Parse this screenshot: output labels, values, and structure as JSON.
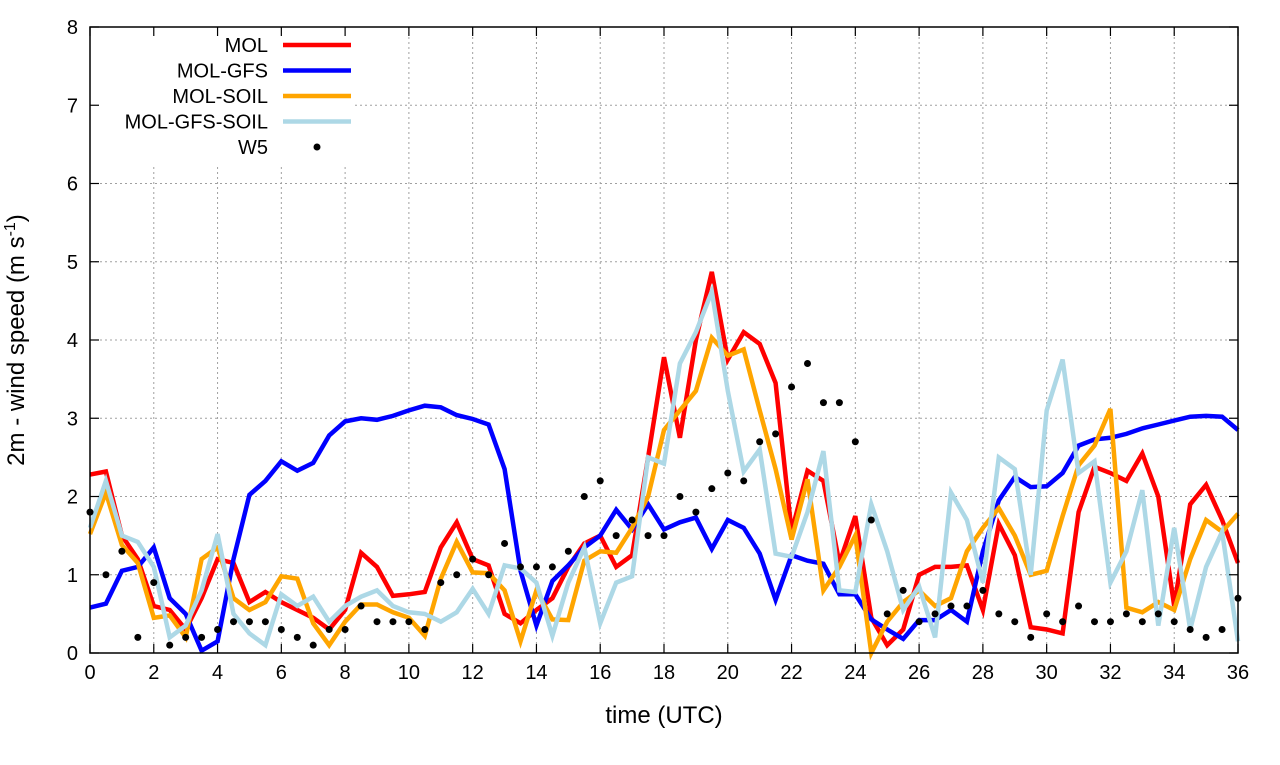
{
  "chart_data": {
    "type": "line",
    "title": "",
    "xlabel": "time (UTC)",
    "ylabel": {
      "main": "2m - wind speed  (m s",
      "sup": "-1",
      "end": ")"
    },
    "xlim": [
      0,
      36
    ],
    "ylim": [
      0,
      8
    ],
    "xticks": [
      0,
      2,
      4,
      6,
      8,
      10,
      12,
      14,
      16,
      18,
      20,
      22,
      24,
      26,
      28,
      30,
      32,
      34,
      36
    ],
    "yticks": [
      0,
      1,
      2,
      3,
      4,
      5,
      6,
      7,
      8
    ],
    "grid": true,
    "legend_position": "top-left",
    "x_step": 0.5,
    "series": [
      {
        "name": "MOL",
        "color": "#ff0000",
        "style": "line",
        "values": [
          2.28,
          2.32,
          1.5,
          1.2,
          0.6,
          0.55,
          0.3,
          0.7,
          1.2,
          1.15,
          0.65,
          0.78,
          0.65,
          0.55,
          0.45,
          0.3,
          0.55,
          1.28,
          1.1,
          0.73,
          0.75,
          0.78,
          1.35,
          1.67,
          1.2,
          1.12,
          0.5,
          0.38,
          0.55,
          0.7,
          1.1,
          1.4,
          1.5,
          1.1,
          1.25,
          2.5,
          3.78,
          2.75,
          4.0,
          4.87,
          3.75,
          4.1,
          3.95,
          3.45,
          1.55,
          2.33,
          2.2,
          1.15,
          1.75,
          0.45,
          0.1,
          0.3,
          1.0,
          1.1,
          1.1,
          1.12,
          0.55,
          1.65,
          1.25,
          0.33,
          0.3,
          0.25,
          1.8,
          2.38,
          2.3,
          2.2,
          2.55,
          2.0,
          0.6,
          1.9,
          2.15,
          1.7,
          1.15
        ]
      },
      {
        "name": "MOL-GFS",
        "color": "#0000ff",
        "style": "line",
        "values": [
          0.58,
          0.63,
          1.05,
          1.1,
          1.35,
          0.7,
          0.5,
          0.03,
          0.15,
          1.2,
          2.02,
          2.2,
          2.45,
          2.33,
          2.43,
          2.78,
          2.96,
          3.0,
          2.98,
          3.03,
          3.1,
          3.16,
          3.14,
          3.04,
          2.99,
          2.92,
          2.35,
          1.05,
          0.35,
          0.92,
          1.12,
          1.35,
          1.5,
          1.83,
          1.58,
          1.9,
          1.58,
          1.67,
          1.73,
          1.33,
          1.7,
          1.6,
          1.27,
          0.68,
          1.25,
          1.18,
          1.14,
          0.75,
          0.75,
          0.43,
          0.3,
          0.18,
          0.42,
          0.42,
          0.55,
          0.4,
          1.3,
          1.95,
          2.25,
          2.12,
          2.13,
          2.3,
          2.65,
          2.73,
          2.75,
          2.8,
          2.87,
          2.92,
          2.97,
          3.02,
          3.03,
          3.02,
          2.85
        ]
      },
      {
        "name": "MOL-SOIL",
        "color": "#ffa500",
        "style": "line",
        "values": [
          1.52,
          2.05,
          1.38,
          1.15,
          0.45,
          0.48,
          0.2,
          1.2,
          1.35,
          0.7,
          0.55,
          0.65,
          0.98,
          0.95,
          0.38,
          0.1,
          0.4,
          0.62,
          0.62,
          0.52,
          0.45,
          0.22,
          0.95,
          1.42,
          1.03,
          1.02,
          0.8,
          0.15,
          0.8,
          0.43,
          0.42,
          1.18,
          1.3,
          1.28,
          1.6,
          2.0,
          2.85,
          3.1,
          3.35,
          4.03,
          3.8,
          3.88,
          3.1,
          2.35,
          1.45,
          2.22,
          0.8,
          1.1,
          1.5,
          0.0,
          0.4,
          0.65,
          0.8,
          0.6,
          0.7,
          1.3,
          1.6,
          1.85,
          1.5,
          1.0,
          1.05,
          1.75,
          2.4,
          2.65,
          3.12,
          0.58,
          0.52,
          0.65,
          0.55,
          1.2,
          1.7,
          1.55,
          1.78
        ]
      },
      {
        "name": "MOL-GFS-SOIL",
        "color": "#add8e6",
        "style": "line",
        "values": [
          1.6,
          2.2,
          1.5,
          1.42,
          1.1,
          0.2,
          0.35,
          0.8,
          1.52,
          0.5,
          0.25,
          0.1,
          0.75,
          0.6,
          0.72,
          0.4,
          0.6,
          0.72,
          0.8,
          0.6,
          0.52,
          0.5,
          0.4,
          0.52,
          0.82,
          0.5,
          1.12,
          1.08,
          0.9,
          0.22,
          0.9,
          1.35,
          0.38,
          0.9,
          0.98,
          2.5,
          2.42,
          3.7,
          4.1,
          4.62,
          3.35,
          2.32,
          2.6,
          1.27,
          1.23,
          1.8,
          2.58,
          0.8,
          0.78,
          1.9,
          1.3,
          0.55,
          0.85,
          0.2,
          2.05,
          1.7,
          0.9,
          2.5,
          2.35,
          1.0,
          3.1,
          3.75,
          2.3,
          2.45,
          0.9,
          1.3,
          2.08,
          0.35,
          1.6,
          0.3,
          1.1,
          1.55,
          0.15
        ]
      },
      {
        "name": "W5",
        "color": "#000000",
        "style": "points",
        "values": [
          1.8,
          1.0,
          1.3,
          0.2,
          0.9,
          0.1,
          0.2,
          0.2,
          0.3,
          0.4,
          0.4,
          0.4,
          0.3,
          0.2,
          0.1,
          0.3,
          0.3,
          0.6,
          0.4,
          0.4,
          0.4,
          0.3,
          0.9,
          1.0,
          1.2,
          1.0,
          1.4,
          1.1,
          1.1,
          1.1,
          1.3,
          2.0,
          2.2,
          1.5,
          1.7,
          1.5,
          1.5,
          2.0,
          1.8,
          2.1,
          2.3,
          2.2,
          2.7,
          2.8,
          3.4,
          3.7,
          3.2,
          3.2,
          2.7,
          1.7,
          0.5,
          0.8,
          0.4,
          0.5,
          0.6,
          0.6,
          0.8,
          0.5,
          0.4,
          0.2,
          0.5,
          0.4,
          0.6,
          0.4,
          0.4,
          0.5,
          0.4,
          0.5,
          0.4,
          0.3,
          0.2,
          0.3,
          0.7
        ]
      }
    ]
  }
}
